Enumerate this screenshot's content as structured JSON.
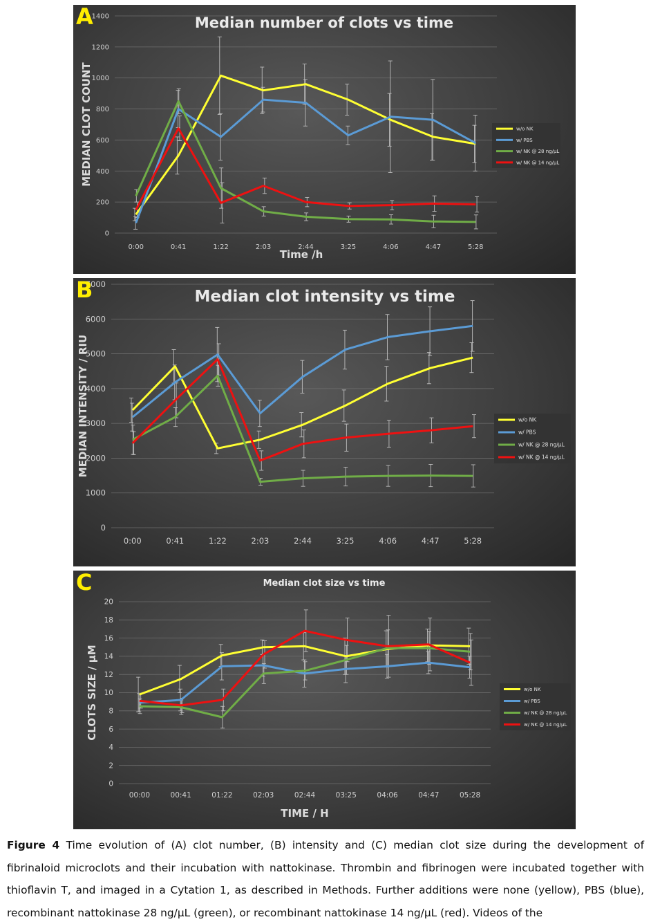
{
  "chart_data": [
    {
      "type": "line",
      "panel_label": "A",
      "title": "Median number of clots vs time",
      "xlabel": "Time  /h",
      "ylabel": "MEDIAN CLOT COUNT",
      "categories": [
        "0:00",
        "0:41",
        "1:22",
        "2:03",
        "2:44",
        "3:25",
        "4:06",
        "4:47",
        "5:28"
      ],
      "ylim": [
        0,
        1400
      ],
      "yticks": [
        0,
        200,
        400,
        600,
        800,
        1000,
        1200,
        1400
      ],
      "grid": true,
      "legend_position": "right",
      "series": [
        {
          "name": "w/o NK",
          "color": "#ffff33",
          "values": [
            120,
            500,
            1015,
            920,
            960,
            860,
            730,
            620,
            575
          ],
          "err": [
            40,
            120,
            250,
            150,
            130,
            100,
            170,
            150,
            120
          ]
        },
        {
          "name": "w/ PBS",
          "color": "#5b9bd5",
          "values": [
            65,
            800,
            620,
            860,
            840,
            630,
            750,
            730,
            580
          ],
          "err": [
            40,
            120,
            150,
            80,
            150,
            60,
            360,
            260,
            180
          ]
        },
        {
          "name": "w/ NK @ 28 ng/µL",
          "color": "#70ad47",
          "values": [
            240,
            850,
            290,
            140,
            105,
            90,
            88,
            75,
            72
          ],
          "err": [
            40,
            80,
            130,
            30,
            25,
            20,
            30,
            40,
            45
          ]
        },
        {
          "name": "w/ NK @ 14 ng/µL",
          "color": "#ee1111",
          "values": [
            150,
            675,
            195,
            305,
            200,
            175,
            180,
            190,
            185
          ],
          "err": [
            50,
            80,
            130,
            50,
            30,
            20,
            30,
            50,
            50
          ]
        }
      ]
    },
    {
      "type": "line",
      "panel_label": "B",
      "title": "Median clot intensity vs time",
      "xlabel": "",
      "ylabel": "MEDIAN INTENSITY / RIU",
      "categories": [
        "0:00",
        "0:41",
        "1:22",
        "2:03",
        "2:44",
        "3:25",
        "4:06",
        "4:47",
        "5:28"
      ],
      "ylim": [
        0,
        7000
      ],
      "yticks": [
        0,
        1000,
        2000,
        3000,
        4000,
        5000,
        6000,
        7000
      ],
      "grid": true,
      "legend_position": "right",
      "series": [
        {
          "name": "w/o NK",
          "color": "#ffff33",
          "values": [
            3380,
            4640,
            2280,
            2530,
            2960,
            3510,
            4140,
            4590,
            4890
          ],
          "err": [
            350,
            480,
            150,
            250,
            350,
            450,
            500,
            450,
            430
          ]
        },
        {
          "name": "w/ PBS",
          "color": "#5b9bd5",
          "values": [
            3180,
            4180,
            4980,
            3290,
            4340,
            5120,
            5480,
            5650,
            5800
          ],
          "err": [
            400,
            500,
            780,
            380,
            470,
            560,
            650,
            700,
            730
          ]
        },
        {
          "name": "w/ NK @ 28 ng/µL",
          "color": "#70ad47",
          "values": [
            2530,
            3180,
            4370,
            1320,
            1420,
            1470,
            1490,
            1500,
            1490
          ],
          "err": [
            420,
            270,
            300,
            100,
            230,
            270,
            300,
            320,
            320
          ]
        },
        {
          "name": "w/ NK @ 14 ng/µL",
          "color": "#ee1111",
          "values": [
            2430,
            3660,
            4840,
            1930,
            2410,
            2590,
            2700,
            2800,
            2920
          ],
          "err": [
            330,
            500,
            450,
            280,
            400,
            390,
            390,
            360,
            330
          ]
        }
      ]
    },
    {
      "type": "line",
      "panel_label": "C",
      "title": "Median clot size vs time",
      "xlabel": "TIME / H",
      "ylabel": "CLOTS SIZE / µM",
      "categories": [
        "00:00",
        "00:41",
        "01:22",
        "02:03",
        "02:44",
        "03:25",
        "04:06",
        "04:47",
        "05:28"
      ],
      "ylim": [
        0,
        20
      ],
      "yticks": [
        0,
        2,
        4,
        6,
        8,
        10,
        12,
        14,
        16,
        18,
        20
      ],
      "grid": true,
      "legend_position": "right",
      "series": [
        {
          "name": "w/o NK",
          "color": "#ffff33",
          "values": [
            9.8,
            11.5,
            14.1,
            15.0,
            15.1,
            14.0,
            14.8,
            15.2,
            15.1
          ],
          "err": [
            1.9,
            1.5,
            1.2,
            0.8,
            1.5,
            2.0,
            2.0,
            1.8,
            2.0
          ]
        },
        {
          "name": "w/ PBS",
          "color": "#5b9bd5",
          "values": [
            8.9,
            9.2,
            12.9,
            13.0,
            12.1,
            12.6,
            12.9,
            13.3,
            12.8
          ],
          "err": [
            1.0,
            1.2,
            1.5,
            1.2,
            1.5,
            1.5,
            1.3,
            1.2,
            1.2
          ]
        },
        {
          "name": "w/ NK @ 28 ng/µL",
          "color": "#70ad47",
          "values": [
            8.5,
            8.4,
            7.3,
            12.1,
            12.4,
            13.6,
            14.9,
            14.9,
            14.5
          ],
          "err": [
            0.8,
            0.8,
            1.2,
            1.1,
            1.0,
            1.6,
            2.0,
            1.8,
            2.0
          ]
        },
        {
          "name": "w/ NK @ 14 ng/µL",
          "color": "#ee1111",
          "values": [
            9.1,
            8.6,
            9.2,
            14.2,
            16.8,
            15.8,
            15.1,
            15.3,
            13.3
          ],
          "err": [
            0.8,
            0.8,
            1.2,
            1.5,
            2.3,
            2.4,
            3.4,
            2.9,
            2.5
          ]
        }
      ]
    }
  ],
  "caption": {
    "label": "Figure 4",
    "text": "Time evolution of (A) clot number, (B) intensity and (C) median clot size during the development of fibrinaloid microclots and their incubation with nattokinase. Thrombin and fibrinogen were incubated together with thioflavin T, and imaged in a Cytation 1, as described in Methods. Further additions were none (yellow), PBS (blue), recombinant nattokinase 28 ng/µL (green), or recombinant nattokinase 14 ng/µL (red). Videos of the"
  }
}
